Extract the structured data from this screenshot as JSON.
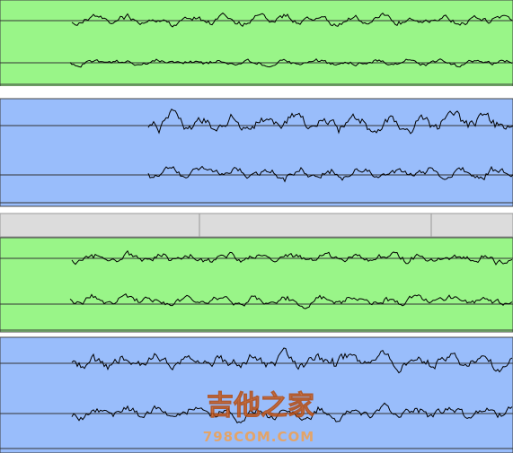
{
  "watermark": {
    "title": "吉他之家",
    "subtitle": "798COM.COM"
  }
}
